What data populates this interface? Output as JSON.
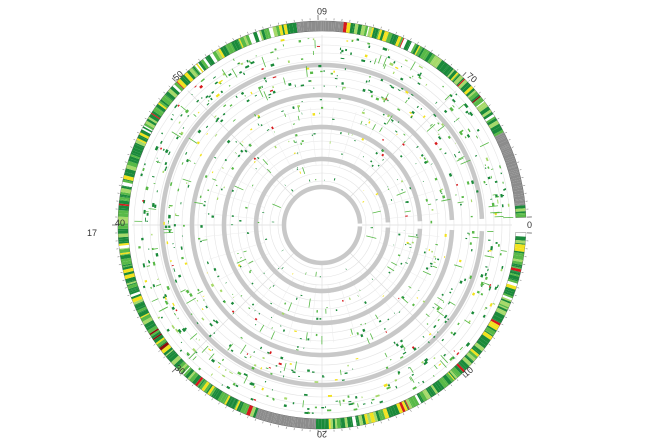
{
  "diagram": {
    "type": "circular-genome-plot",
    "scale_labels": [
      "0",
      "10",
      "20",
      "30",
      "40",
      "50",
      "60",
      "70"
    ],
    "side_label": "17",
    "colors": {
      "dark_green": "#1a8a3a",
      "mid_green": "#58b947",
      "light_green": "#a6d96a",
      "yellow": "#f2e21e",
      "red": "#d7191c",
      "dark_red": "#8b0d0d",
      "gray": "#8c8c8c",
      "ring_gray": "#c8c8c8",
      "grid": "#e4e4e4"
    }
  }
}
